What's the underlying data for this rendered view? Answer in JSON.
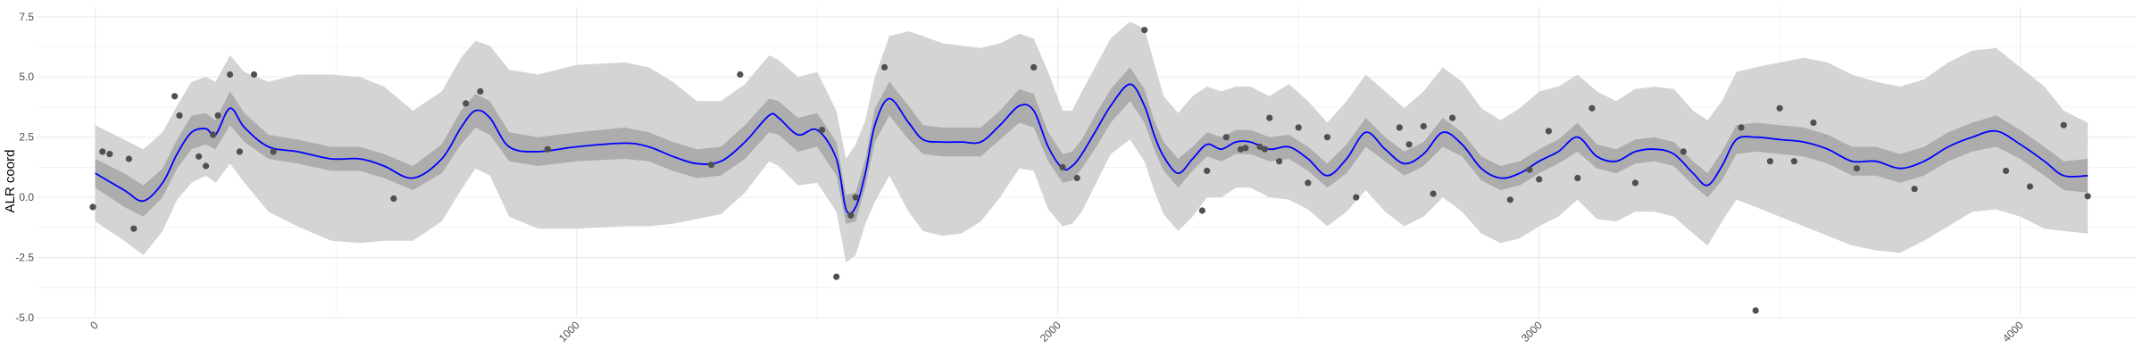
{
  "chart_data": {
    "type": "line",
    "title": "",
    "xlabel": "",
    "ylabel": "ALR coord",
    "xlim": [
      -120,
      4240
    ],
    "ylim": [
      -5.0,
      7.9
    ],
    "x_ticks": [
      0,
      1000,
      2000,
      3000,
      4000
    ],
    "x_tick_labels": [
      "0",
      "1000",
      "2000",
      "3000",
      "4000"
    ],
    "y_ticks": [
      -5.0,
      -2.5,
      0.0,
      2.5,
      5.0,
      7.5
    ],
    "y_tick_labels": [
      "-5.0",
      "-2.5",
      "0.0",
      "2.5",
      "5.0",
      "7.5"
    ],
    "grid": true,
    "x": [
      0,
      60,
      100,
      140,
      170,
      200,
      230,
      250,
      280,
      310,
      360,
      420,
      490,
      550,
      600,
      660,
      720,
      760,
      790,
      820,
      860,
      920,
      1000,
      1100,
      1150,
      1200,
      1250,
      1300,
      1350,
      1400,
      1420,
      1460,
      1500,
      1540,
      1560,
      1580,
      1600,
      1620,
      1650,
      1690,
      1720,
      1760,
      1800,
      1840,
      1880,
      1920,
      1950,
      1980,
      2010,
      2030,
      2050,
      2080,
      2110,
      2150,
      2180,
      2200,
      2220,
      2250,
      2280,
      2310,
      2340,
      2370,
      2400,
      2440,
      2480,
      2520,
      2560,
      2600,
      2640,
      2680,
      2720,
      2760,
      2800,
      2840,
      2880,
      2920,
      2960,
      3000,
      3040,
      3080,
      3120,
      3160,
      3200,
      3240,
      3280,
      3320,
      3350,
      3380,
      3410,
      3450,
      3500,
      3550,
      3600,
      3650,
      3700,
      3750,
      3800,
      3850,
      3900,
      3950,
      4000,
      4050,
      4090,
      4140
    ],
    "series": [
      {
        "values": [
          1.0,
          0.3,
          -0.15,
          0.6,
          1.8,
          2.7,
          2.85,
          2.6,
          3.7,
          2.9,
          2.1,
          1.9,
          1.6,
          1.6,
          1.3,
          0.8,
          1.6,
          2.9,
          3.6,
          3.3,
          2.1,
          1.9,
          2.1,
          2.25,
          2.1,
          1.7,
          1.4,
          1.5,
          2.3,
          3.4,
          3.3,
          2.6,
          2.8,
          1.6,
          -0.5,
          -0.4,
          1.0,
          3.0,
          4.1,
          3.1,
          2.4,
          2.3,
          2.3,
          2.3,
          3.0,
          3.8,
          3.6,
          2.1,
          1.2,
          1.3,
          1.8,
          2.8,
          3.8,
          4.7,
          3.8,
          2.6,
          1.7,
          1.0,
          1.6,
          2.2,
          2.0,
          2.3,
          2.3,
          2.0,
          2.1,
          1.6,
          0.9,
          1.6,
          2.7,
          2.0,
          1.4,
          1.8,
          2.7,
          2.2,
          1.2,
          0.8,
          1.0,
          1.5,
          1.9,
          2.5,
          1.7,
          1.5,
          1.9,
          2.0,
          1.8,
          1.0,
          0.5,
          1.3,
          2.4,
          2.5,
          2.4,
          2.3,
          2.0,
          1.5,
          1.5,
          1.2,
          1.5,
          2.1,
          2.5,
          2.75,
          2.2,
          1.5,
          0.9,
          0.9
        ],
        "lower_inner": [
          0.4,
          -0.4,
          -0.8,
          0.0,
          1.2,
          2.0,
          2.2,
          2.0,
          3.0,
          2.3,
          1.6,
          1.4,
          1.1,
          1.1,
          0.8,
          0.3,
          1.0,
          2.2,
          2.9,
          2.6,
          1.5,
          1.3,
          1.5,
          1.6,
          1.5,
          1.1,
          0.8,
          0.9,
          1.6,
          2.7,
          2.6,
          1.9,
          2.1,
          0.9,
          -1.1,
          -1.0,
          0.4,
          2.3,
          3.4,
          2.4,
          1.8,
          1.7,
          1.7,
          1.7,
          2.4,
          3.1,
          2.9,
          1.5,
          0.6,
          0.7,
          1.2,
          2.1,
          3.1,
          4.0,
          3.1,
          2.0,
          1.1,
          0.4,
          1.1,
          1.7,
          1.5,
          1.8,
          1.8,
          1.5,
          1.6,
          1.1,
          0.4,
          1.0,
          2.1,
          1.5,
          0.9,
          1.3,
          2.1,
          1.7,
          0.7,
          0.3,
          0.5,
          1.0,
          1.4,
          1.9,
          1.2,
          1.0,
          1.4,
          1.5,
          1.3,
          0.5,
          0.0,
          0.7,
          1.8,
          1.9,
          1.8,
          1.7,
          1.4,
          0.9,
          0.9,
          0.6,
          0.9,
          1.5,
          1.9,
          2.1,
          1.6,
          0.9,
          0.3,
          0.2
        ],
        "upper_inner": [
          1.6,
          1.0,
          0.5,
          1.2,
          2.4,
          3.4,
          3.5,
          3.2,
          4.4,
          3.5,
          2.6,
          2.4,
          2.1,
          2.1,
          1.8,
          1.3,
          2.2,
          3.6,
          4.3,
          4.0,
          2.7,
          2.5,
          2.7,
          2.9,
          2.7,
          2.3,
          2.0,
          2.1,
          3.0,
          4.1,
          4.0,
          3.3,
          3.5,
          2.3,
          0.1,
          0.2,
          1.6,
          3.7,
          4.8,
          3.8,
          3.0,
          2.9,
          2.9,
          2.9,
          3.6,
          4.5,
          4.3,
          2.7,
          1.8,
          1.9,
          2.4,
          3.5,
          4.5,
          5.4,
          4.5,
          3.2,
          2.3,
          1.6,
          2.1,
          2.7,
          2.5,
          2.8,
          2.8,
          2.5,
          2.6,
          2.1,
          1.4,
          2.2,
          3.3,
          2.5,
          1.9,
          2.3,
          3.3,
          2.7,
          1.7,
          1.3,
          1.5,
          2.0,
          2.4,
          3.1,
          2.2,
          2.0,
          2.4,
          2.5,
          2.3,
          1.5,
          1.0,
          1.9,
          3.0,
          3.1,
          3.0,
          2.9,
          2.6,
          2.1,
          2.1,
          1.8,
          2.1,
          2.7,
          3.1,
          3.4,
          2.8,
          2.1,
          1.5,
          1.6
        ],
        "lower_outer": [
          -1.0,
          -1.8,
          -2.4,
          -1.4,
          -0.1,
          0.6,
          0.9,
          0.6,
          1.4,
          0.6,
          -0.6,
          -1.2,
          -1.8,
          -1.9,
          -1.8,
          -1.8,
          -1.0,
          0.3,
          1.2,
          0.9,
          -0.8,
          -1.3,
          -1.3,
          -1.2,
          -1.2,
          -1.1,
          -0.9,
          -0.7,
          0.2,
          1.5,
          1.3,
          0.5,
          0.6,
          -0.6,
          -2.7,
          -2.4,
          -1.1,
          -0.2,
          0.9,
          -0.6,
          -1.4,
          -1.6,
          -1.5,
          -1.0,
          0.0,
          1.2,
          1.1,
          -0.5,
          -1.2,
          -1.1,
          -0.6,
          0.6,
          1.8,
          2.4,
          1.5,
          0.3,
          -0.7,
          -1.4,
          -0.8,
          0.0,
          0.0,
          0.4,
          0.4,
          0.0,
          -0.1,
          -0.5,
          -1.2,
          -0.6,
          0.3,
          -0.6,
          -1.2,
          -0.8,
          0.0,
          -0.6,
          -1.5,
          -1.9,
          -1.7,
          -1.2,
          -0.8,
          -0.1,
          -0.9,
          -1.0,
          -0.6,
          -0.6,
          -0.8,
          -1.5,
          -2.0,
          -1.0,
          -0.1,
          -0.4,
          -0.8,
          -1.2,
          -1.6,
          -2.0,
          -2.2,
          -2.3,
          -1.8,
          -1.2,
          -0.6,
          -0.5,
          -0.8,
          -1.3,
          -1.4,
          -1.5
        ],
        "upper_outer": [
          3.0,
          2.4,
          2.0,
          2.7,
          3.8,
          4.8,
          5.0,
          4.8,
          5.9,
          5.2,
          4.8,
          5.1,
          5.1,
          5.0,
          4.6,
          3.6,
          4.4,
          5.8,
          6.5,
          6.3,
          5.3,
          5.1,
          5.5,
          5.6,
          5.4,
          4.8,
          4.0,
          4.0,
          4.7,
          5.9,
          5.7,
          5.0,
          5.2,
          3.6,
          1.6,
          2.2,
          3.2,
          5.0,
          6.7,
          6.9,
          6.7,
          6.4,
          6.3,
          6.2,
          6.4,
          6.8,
          6.6,
          5.2,
          3.6,
          3.6,
          4.4,
          5.5,
          6.6,
          7.3,
          7.0,
          5.6,
          4.2,
          3.5,
          4.2,
          4.6,
          4.4,
          4.6,
          4.6,
          4.2,
          4.7,
          4.0,
          3.1,
          4.0,
          5.1,
          4.4,
          3.7,
          4.4,
          5.4,
          4.8,
          3.7,
          3.2,
          3.7,
          4.4,
          4.6,
          5.1,
          4.4,
          4.0,
          4.5,
          4.6,
          4.5,
          3.6,
          3.2,
          4.0,
          5.2,
          5.4,
          5.6,
          5.8,
          5.6,
          5.1,
          4.8,
          4.6,
          4.9,
          5.6,
          6.1,
          6.2,
          5.4,
          4.6,
          3.6,
          3.1
        ]
      }
    ],
    "points": {
      "x": [
        -5,
        15,
        30,
        70,
        80,
        165,
        175,
        215,
        230,
        245,
        255,
        280,
        300,
        330,
        370,
        620,
        770,
        800,
        940,
        1280,
        1340,
        1510,
        1540,
        1570,
        1580,
        1640,
        1950,
        2010,
        2040,
        2180,
        2300,
        2310,
        2350,
        2380,
        2390,
        2420,
        2430,
        2440,
        2460,
        2500,
        2520,
        2560,
        2620,
        2710,
        2730,
        2760,
        2780,
        2820,
        2940,
        2980,
        3000,
        3020,
        3080,
        3110,
        3200,
        3300,
        3420,
        3450,
        3480,
        3500,
        3530,
        3570,
        3660,
        3780,
        3970,
        4020,
        4090,
        4140
      ],
      "y": [
        -0.4,
        1.9,
        1.8,
        1.6,
        -1.3,
        4.2,
        3.4,
        1.7,
        1.3,
        2.6,
        3.4,
        5.1,
        1.9,
        5.1,
        1.9,
        -0.05,
        3.9,
        4.4,
        2.0,
        1.35,
        5.1,
        2.8,
        -3.3,
        -0.75,
        0.0,
        5.4,
        5.4,
        1.25,
        0.8,
        6.95,
        -0.55,
        1.1,
        2.5,
        2.0,
        2.05,
        2.1,
        2.0,
        3.3,
        1.5,
        2.9,
        0.6,
        2.5,
        0.0,
        2.9,
        2.2,
        2.95,
        0.15,
        3.3,
        -0.1,
        1.15,
        0.75,
        2.75,
        0.8,
        3.7,
        0.6,
        1.9,
        2.9,
        -4.7,
        1.5,
        3.7,
        1.5,
        3.1,
        1.2,
        0.35,
        1.1,
        0.45,
        3.0,
        0.05
      ]
    },
    "colors": {
      "outer_band": "#d4d4d4",
      "inner_band": "#adadad",
      "line": "#0000ff",
      "points": "#505050",
      "grid": "#ebebeb",
      "tick_text": "#4d4d4d"
    }
  }
}
